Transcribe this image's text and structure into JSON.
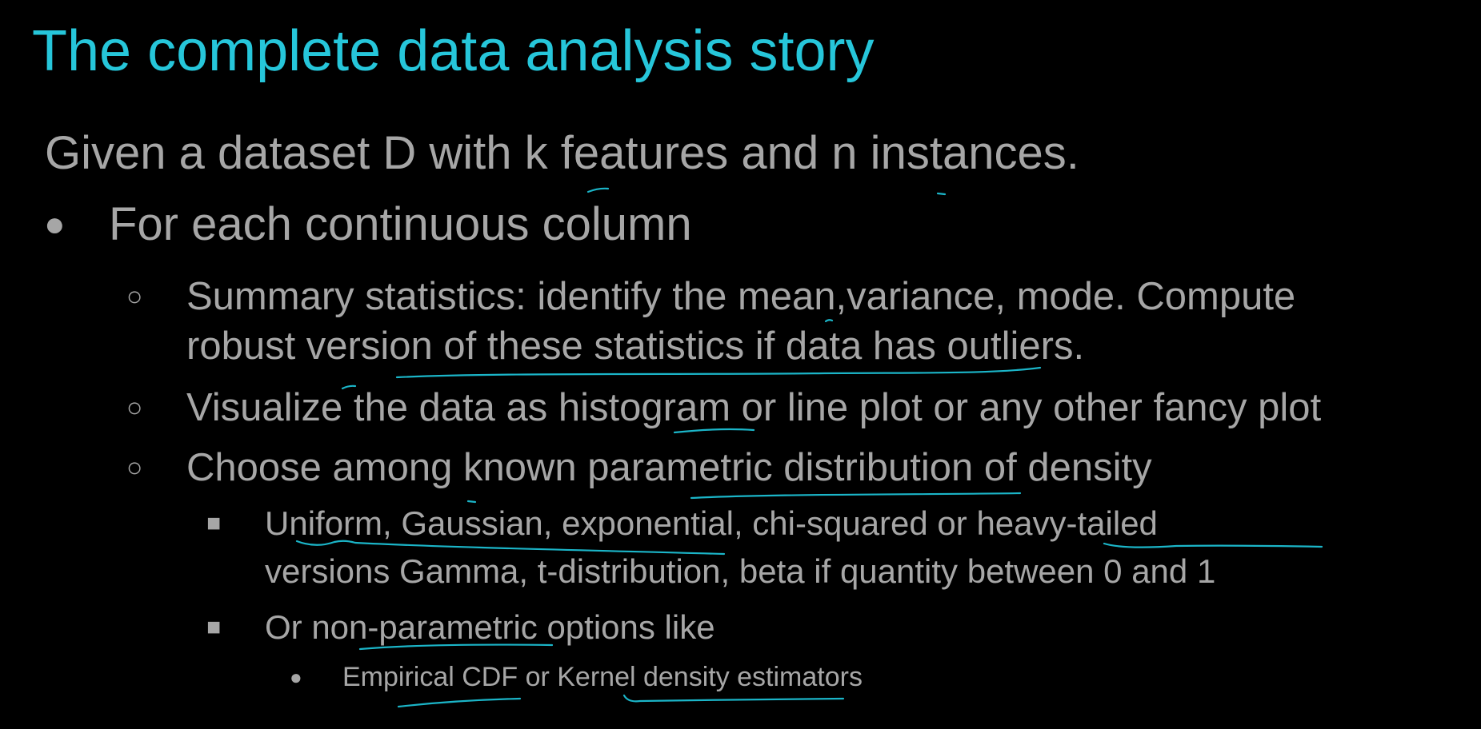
{
  "slide": {
    "title": "The complete data analysis story",
    "intro": "Given a dataset D with k features and n instances.",
    "level1": "For each continuous column",
    "bullet_disc": "●",
    "bullet_circle": "○",
    "bullet_square": "■",
    "bullet_small": "●",
    "item1_line1": "Summary statistics: identify the mean,variance, mode.  Compute",
    "item1_line2": "robust version of these statistics if data has outliers.",
    "item2": "Visualize the data as histogram or line plot or any other fancy plot",
    "item3": "Choose among known parametric distribution of density",
    "sub1_line1": "Uniform, Gaussian, exponential, chi-squared or heavy-tailed",
    "sub1_line2": "versions Gamma, t-distribution, beta if quantity between 0 and 1",
    "sub2": "Or non-parametric options like",
    "subsub1": "Empirical CDF or Kernel density estimators"
  },
  "colors": {
    "background": "#000000",
    "title": "#26c6da",
    "body_text": "#a6a6a6",
    "ink": "#1bb5c8"
  }
}
